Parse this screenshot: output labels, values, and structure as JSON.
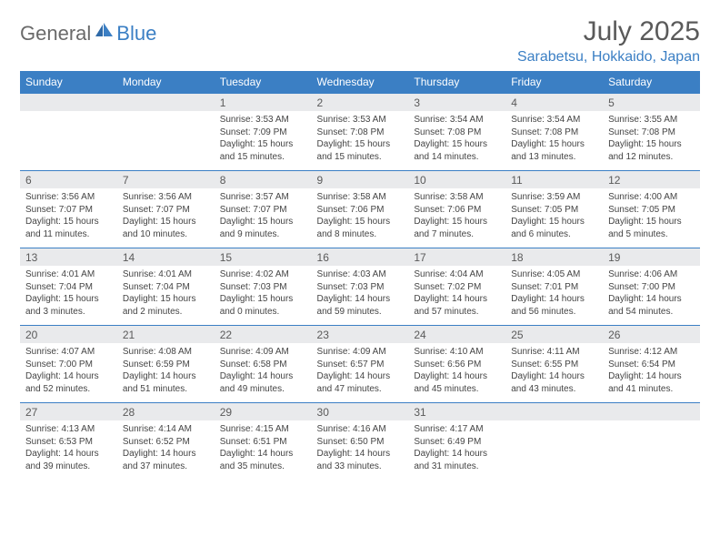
{
  "brand": {
    "text1": "General",
    "text2": "Blue"
  },
  "title": "July 2025",
  "location": "Sarabetsu, Hokkaido, Japan",
  "colors": {
    "accent": "#3b7fc4",
    "header_text": "#ffffff",
    "daynum_bg": "#e9eaec",
    "body_bg": "#ffffff",
    "text": "#444444",
    "title_text": "#5a5a5a"
  },
  "layout": {
    "columns": 7,
    "rows": 5,
    "col_width_pct": 14.28,
    "daynum_fontsize": 12,
    "body_fontsize": 10
  },
  "day_headers": [
    "Sunday",
    "Monday",
    "Tuesday",
    "Wednesday",
    "Thursday",
    "Friday",
    "Saturday"
  ],
  "weeks": [
    [
      {
        "num": "",
        "sunrise": "",
        "sunset": "",
        "daylight1": "",
        "daylight2": ""
      },
      {
        "num": "",
        "sunrise": "",
        "sunset": "",
        "daylight1": "",
        "daylight2": ""
      },
      {
        "num": "1",
        "sunrise": "Sunrise: 3:53 AM",
        "sunset": "Sunset: 7:09 PM",
        "daylight1": "Daylight: 15 hours",
        "daylight2": "and 15 minutes."
      },
      {
        "num": "2",
        "sunrise": "Sunrise: 3:53 AM",
        "sunset": "Sunset: 7:08 PM",
        "daylight1": "Daylight: 15 hours",
        "daylight2": "and 15 minutes."
      },
      {
        "num": "3",
        "sunrise": "Sunrise: 3:54 AM",
        "sunset": "Sunset: 7:08 PM",
        "daylight1": "Daylight: 15 hours",
        "daylight2": "and 14 minutes."
      },
      {
        "num": "4",
        "sunrise": "Sunrise: 3:54 AM",
        "sunset": "Sunset: 7:08 PM",
        "daylight1": "Daylight: 15 hours",
        "daylight2": "and 13 minutes."
      },
      {
        "num": "5",
        "sunrise": "Sunrise: 3:55 AM",
        "sunset": "Sunset: 7:08 PM",
        "daylight1": "Daylight: 15 hours",
        "daylight2": "and 12 minutes."
      }
    ],
    [
      {
        "num": "6",
        "sunrise": "Sunrise: 3:56 AM",
        "sunset": "Sunset: 7:07 PM",
        "daylight1": "Daylight: 15 hours",
        "daylight2": "and 11 minutes."
      },
      {
        "num": "7",
        "sunrise": "Sunrise: 3:56 AM",
        "sunset": "Sunset: 7:07 PM",
        "daylight1": "Daylight: 15 hours",
        "daylight2": "and 10 minutes."
      },
      {
        "num": "8",
        "sunrise": "Sunrise: 3:57 AM",
        "sunset": "Sunset: 7:07 PM",
        "daylight1": "Daylight: 15 hours",
        "daylight2": "and 9 minutes."
      },
      {
        "num": "9",
        "sunrise": "Sunrise: 3:58 AM",
        "sunset": "Sunset: 7:06 PM",
        "daylight1": "Daylight: 15 hours",
        "daylight2": "and 8 minutes."
      },
      {
        "num": "10",
        "sunrise": "Sunrise: 3:58 AM",
        "sunset": "Sunset: 7:06 PM",
        "daylight1": "Daylight: 15 hours",
        "daylight2": "and 7 minutes."
      },
      {
        "num": "11",
        "sunrise": "Sunrise: 3:59 AM",
        "sunset": "Sunset: 7:05 PM",
        "daylight1": "Daylight: 15 hours",
        "daylight2": "and 6 minutes."
      },
      {
        "num": "12",
        "sunrise": "Sunrise: 4:00 AM",
        "sunset": "Sunset: 7:05 PM",
        "daylight1": "Daylight: 15 hours",
        "daylight2": "and 5 minutes."
      }
    ],
    [
      {
        "num": "13",
        "sunrise": "Sunrise: 4:01 AM",
        "sunset": "Sunset: 7:04 PM",
        "daylight1": "Daylight: 15 hours",
        "daylight2": "and 3 minutes."
      },
      {
        "num": "14",
        "sunrise": "Sunrise: 4:01 AM",
        "sunset": "Sunset: 7:04 PM",
        "daylight1": "Daylight: 15 hours",
        "daylight2": "and 2 minutes."
      },
      {
        "num": "15",
        "sunrise": "Sunrise: 4:02 AM",
        "sunset": "Sunset: 7:03 PM",
        "daylight1": "Daylight: 15 hours",
        "daylight2": "and 0 minutes."
      },
      {
        "num": "16",
        "sunrise": "Sunrise: 4:03 AM",
        "sunset": "Sunset: 7:03 PM",
        "daylight1": "Daylight: 14 hours",
        "daylight2": "and 59 minutes."
      },
      {
        "num": "17",
        "sunrise": "Sunrise: 4:04 AM",
        "sunset": "Sunset: 7:02 PM",
        "daylight1": "Daylight: 14 hours",
        "daylight2": "and 57 minutes."
      },
      {
        "num": "18",
        "sunrise": "Sunrise: 4:05 AM",
        "sunset": "Sunset: 7:01 PM",
        "daylight1": "Daylight: 14 hours",
        "daylight2": "and 56 minutes."
      },
      {
        "num": "19",
        "sunrise": "Sunrise: 4:06 AM",
        "sunset": "Sunset: 7:00 PM",
        "daylight1": "Daylight: 14 hours",
        "daylight2": "and 54 minutes."
      }
    ],
    [
      {
        "num": "20",
        "sunrise": "Sunrise: 4:07 AM",
        "sunset": "Sunset: 7:00 PM",
        "daylight1": "Daylight: 14 hours",
        "daylight2": "and 52 minutes."
      },
      {
        "num": "21",
        "sunrise": "Sunrise: 4:08 AM",
        "sunset": "Sunset: 6:59 PM",
        "daylight1": "Daylight: 14 hours",
        "daylight2": "and 51 minutes."
      },
      {
        "num": "22",
        "sunrise": "Sunrise: 4:09 AM",
        "sunset": "Sunset: 6:58 PM",
        "daylight1": "Daylight: 14 hours",
        "daylight2": "and 49 minutes."
      },
      {
        "num": "23",
        "sunrise": "Sunrise: 4:09 AM",
        "sunset": "Sunset: 6:57 PM",
        "daylight1": "Daylight: 14 hours",
        "daylight2": "and 47 minutes."
      },
      {
        "num": "24",
        "sunrise": "Sunrise: 4:10 AM",
        "sunset": "Sunset: 6:56 PM",
        "daylight1": "Daylight: 14 hours",
        "daylight2": "and 45 minutes."
      },
      {
        "num": "25",
        "sunrise": "Sunrise: 4:11 AM",
        "sunset": "Sunset: 6:55 PM",
        "daylight1": "Daylight: 14 hours",
        "daylight2": "and 43 minutes."
      },
      {
        "num": "26",
        "sunrise": "Sunrise: 4:12 AM",
        "sunset": "Sunset: 6:54 PM",
        "daylight1": "Daylight: 14 hours",
        "daylight2": "and 41 minutes."
      }
    ],
    [
      {
        "num": "27",
        "sunrise": "Sunrise: 4:13 AM",
        "sunset": "Sunset: 6:53 PM",
        "daylight1": "Daylight: 14 hours",
        "daylight2": "and 39 minutes."
      },
      {
        "num": "28",
        "sunrise": "Sunrise: 4:14 AM",
        "sunset": "Sunset: 6:52 PM",
        "daylight1": "Daylight: 14 hours",
        "daylight2": "and 37 minutes."
      },
      {
        "num": "29",
        "sunrise": "Sunrise: 4:15 AM",
        "sunset": "Sunset: 6:51 PM",
        "daylight1": "Daylight: 14 hours",
        "daylight2": "and 35 minutes."
      },
      {
        "num": "30",
        "sunrise": "Sunrise: 4:16 AM",
        "sunset": "Sunset: 6:50 PM",
        "daylight1": "Daylight: 14 hours",
        "daylight2": "and 33 minutes."
      },
      {
        "num": "31",
        "sunrise": "Sunrise: 4:17 AM",
        "sunset": "Sunset: 6:49 PM",
        "daylight1": "Daylight: 14 hours",
        "daylight2": "and 31 minutes."
      },
      {
        "num": "",
        "sunrise": "",
        "sunset": "",
        "daylight1": "",
        "daylight2": ""
      },
      {
        "num": "",
        "sunrise": "",
        "sunset": "",
        "daylight1": "",
        "daylight2": ""
      }
    ]
  ]
}
